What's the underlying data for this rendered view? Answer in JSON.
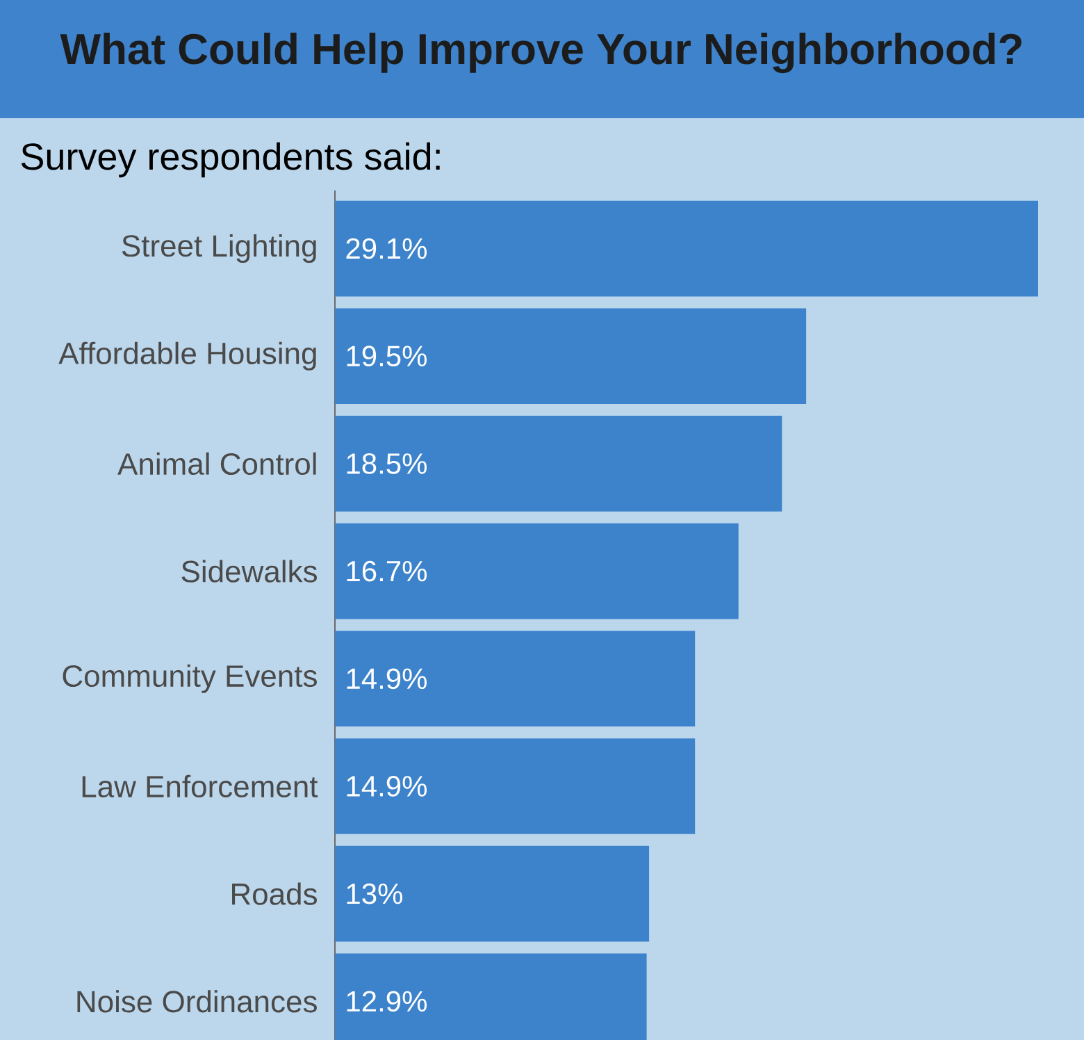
{
  "chart_data": {
    "type": "bar",
    "orientation": "horizontal",
    "title": "What Could Help Improve Your Neighborhood?",
    "subtitle": "Survey respondents said:",
    "categories": [
      "Street Lighting",
      "Affordable Housing",
      "Animal Control",
      "Sidewalks",
      "Community Events",
      "Law Enforcement",
      "Roads",
      "Noise Ordinances"
    ],
    "values": [
      29.1,
      19.5,
      18.5,
      16.7,
      14.9,
      14.9,
      13,
      12.9
    ],
    "value_labels": [
      "29.1%",
      "19.5%",
      "18.5%",
      "16.7%",
      "14.9%",
      "14.9%",
      "13%",
      "12.9%"
    ],
    "color": "#3d83cb"
  }
}
